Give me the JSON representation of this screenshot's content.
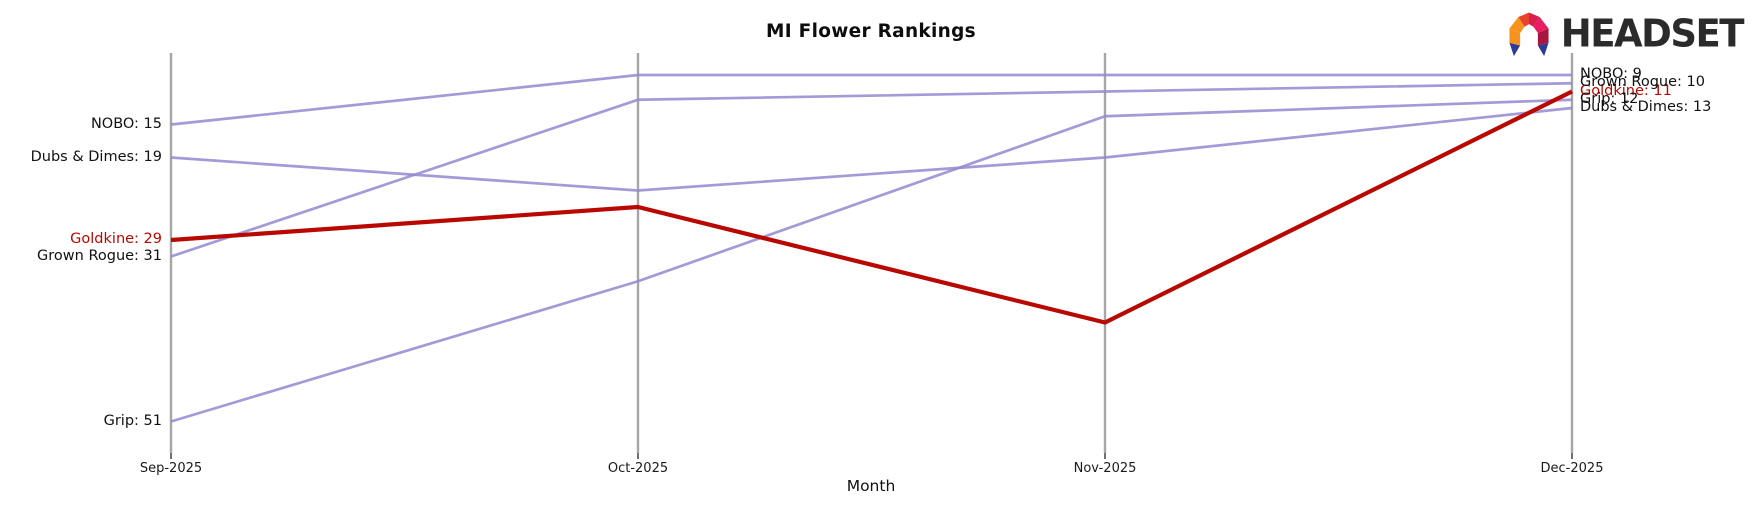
{
  "header": {
    "brand": {
      "name": "HEADSET",
      "logo_colors": {
        "orange": "#f6921e",
        "orange_red": "#e8432f",
        "red": "#e02a2a",
        "crimson": "#d91f4e",
        "magenta": "#e81d62",
        "maroon": "#a8173f",
        "blue": "#2e3b99"
      }
    }
  },
  "chart_data": {
    "type": "line",
    "subtype": "bump-ranking",
    "title": "MI Flower Rankings",
    "xlabel": "Month",
    "x": [
      "Sep-2025",
      "Oct-2025",
      "Nov-2025",
      "Dec-2025"
    ],
    "y_axis": {
      "inverted": true,
      "meaning": "sales rank (lower number = better)",
      "axis_line_visible": false
    },
    "grid": "one vertical gray line per month",
    "legend": "inline start/end value labels",
    "series": [
      {
        "name": "NOBO",
        "values": [
          15,
          9,
          9,
          9
        ],
        "start_label": "NOBO: 15",
        "end_label": "NOBO: 9",
        "color": "#9488d0",
        "emphasis": false
      },
      {
        "name": "Dubs & Dimes",
        "values": [
          19,
          23,
          19,
          13
        ],
        "start_label": "Dubs & Dimes: 19",
        "end_label": "Dubs & Dimes: 13",
        "color": "#9488d0",
        "emphasis": false
      },
      {
        "name": "Goldkine",
        "values": [
          29,
          25,
          39,
          11
        ],
        "start_label": "Goldkine: 29",
        "end_label": "Goldkine: 11",
        "color": "#b80800",
        "emphasis": true
      },
      {
        "name": "Grown Rogue",
        "values": [
          31,
          12,
          11,
          10
        ],
        "start_label": "Grown Rogue: 31",
        "end_label": "Grown Rogue: 10",
        "color": "#9488d0",
        "emphasis": false
      },
      {
        "name": "Grip",
        "values": [
          51,
          34,
          14,
          12
        ],
        "start_label": "Grip: 51",
        "end_label": "Grip: 12",
        "color": "#9488d0",
        "emphasis": false
      }
    ],
    "colors": {
      "line_default": "#9488d0",
      "line_emphasis": "#b80800",
      "axis_line": "#a6a6a6",
      "tick": "#333333",
      "label_text": "#111111",
      "emphasis_text": "#b80800"
    }
  }
}
